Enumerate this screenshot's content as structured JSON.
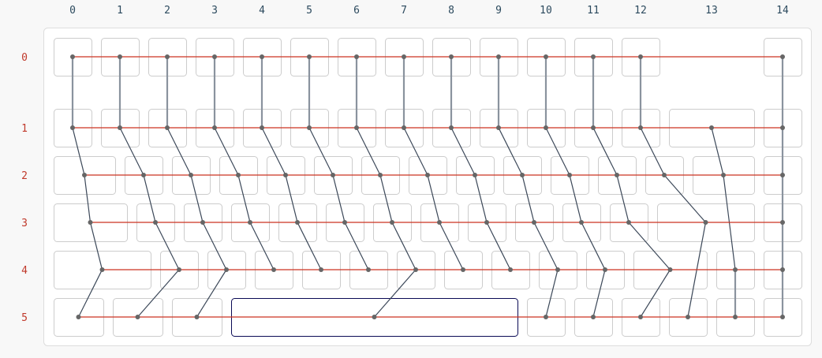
{
  "column_labels": [
    "0",
    "1",
    "2",
    "3",
    "4",
    "5",
    "6",
    "7",
    "8",
    "9",
    "10",
    "11",
    "12",
    "13",
    "14"
  ],
  "row_labels": [
    "0",
    "1",
    "2",
    "3",
    "4",
    "5"
  ],
  "colors": {
    "column_label": "#2c4a5e",
    "row_label": "#c0392b",
    "row_wire": "#cc3322",
    "column_wire_straight": "#8a939e",
    "column_wire_diagonal": "#3c4859",
    "node": "#666666",
    "key_border": "#cccccc",
    "selected_key_border": "#0a0a55",
    "panel_border": "#dddddd"
  },
  "matrix": {
    "rows": [
      {
        "row": 0,
        "columns": [
          0,
          1,
          2,
          3,
          4,
          5,
          6,
          7,
          8,
          9,
          10,
          11,
          12,
          14
        ]
      },
      {
        "row": 1,
        "columns": [
          0,
          1,
          2,
          3,
          4,
          5,
          6,
          7,
          8,
          9,
          10,
          11,
          12,
          13,
          14
        ]
      },
      {
        "row": 2,
        "columns": [
          0,
          1,
          2,
          3,
          4,
          5,
          6,
          7,
          8,
          9,
          10,
          11,
          12,
          13,
          14
        ]
      },
      {
        "row": 3,
        "columns": [
          0,
          1,
          2,
          3,
          4,
          5,
          6,
          7,
          8,
          9,
          10,
          11,
          12,
          14
        ]
      },
      {
        "row": 4,
        "columns": [
          0,
          1,
          2,
          3,
          4,
          5,
          6,
          7,
          8,
          9,
          10,
          11,
          13,
          14
        ]
      },
      {
        "row": 5,
        "columns": [
          0,
          1,
          2,
          6,
          9,
          10,
          11,
          12,
          13,
          14
        ]
      }
    ],
    "selected_key": {
      "row": 5,
      "column": 6
    }
  }
}
